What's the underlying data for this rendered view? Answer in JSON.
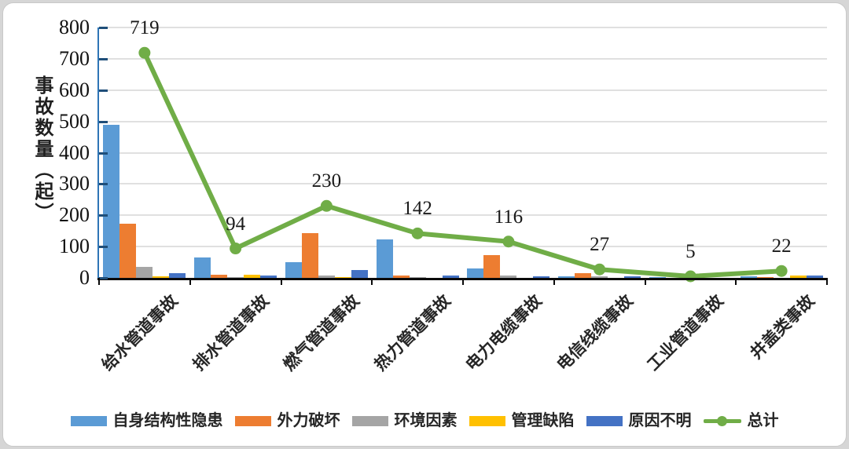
{
  "chart_data": {
    "type": "bar+line",
    "title": "",
    "ylabel": "事故数量（起）",
    "xlabel": "",
    "ylim": [
      0,
      800
    ],
    "ytick_interval": 100,
    "yticks": [
      "0",
      "100",
      "200",
      "300",
      "400",
      "500",
      "600",
      "700",
      "800"
    ],
    "grid": true,
    "legend_position": "bottom",
    "categories": [
      "给水管道事故",
      "排水管道事故",
      "燃气管道事故",
      "热力管道事故",
      "电力电缆事故",
      "电信线缆事故",
      "工业管道事故",
      "井盖类事故"
    ],
    "series": [
      {
        "name": "自身结构性隐患",
        "type": "bar",
        "color": "#5B9BD5",
        "values": [
          490,
          65,
          50,
          122,
          31,
          4,
          2,
          4
        ]
      },
      {
        "name": "外力破坏",
        "type": "bar",
        "color": "#ED7D31",
        "values": [
          172,
          9,
          144,
          8,
          72,
          15,
          1,
          2
        ]
      },
      {
        "name": "环境因素",
        "type": "bar",
        "color": "#A5A5A5",
        "values": [
          36,
          2,
          8,
          3,
          8,
          4,
          1,
          1
        ]
      },
      {
        "name": "管理缺陷",
        "type": "bar",
        "color": "#FFC000",
        "values": [
          5,
          10,
          2,
          1,
          1,
          0,
          0,
          8
        ]
      },
      {
        "name": "原因不明",
        "type": "bar",
        "color": "#4472C4",
        "values": [
          16,
          8,
          26,
          8,
          4,
          4,
          1,
          7
        ]
      },
      {
        "name": "总计",
        "type": "line",
        "color": "#70AD47",
        "values": [
          719,
          94,
          230,
          142,
          116,
          27,
          5,
          22
        ]
      }
    ],
    "total_data_labels": [
      "719",
      "94",
      "230",
      "142",
      "116",
      "27",
      "5",
      "22"
    ]
  },
  "colors": {
    "y_axis": "#2E75B6",
    "y_axis_tick": "#1F4E79",
    "x_axis": "#0a0a0a",
    "gridline": "#e0e0e0",
    "background": "#ffffff",
    "frame": "#d6d6d6"
  }
}
